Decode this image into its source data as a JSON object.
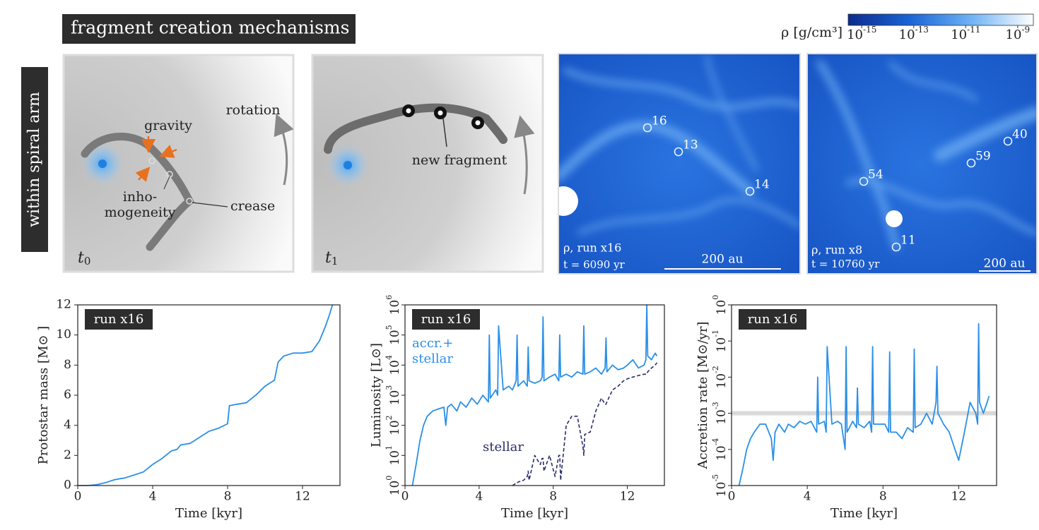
{
  "header": {
    "title": "fragment creation mechanisms",
    "side_label": "within spiral arm"
  },
  "diagram_t0": {
    "gravity": "gravity",
    "rotation": "rotation",
    "inhomogeneity": [
      "inho-",
      "mogeneity"
    ],
    "crease": "crease",
    "time": {
      "var": "t",
      "sub": "0"
    }
  },
  "diagram_t1": {
    "new_fragment": "new fragment",
    "time": {
      "var": "t",
      "sub": "1"
    }
  },
  "colorbar": {
    "label": "ρ [g/cm³]",
    "log": true,
    "lim": [
      3e-16,
      4e-09
    ],
    "colors": [
      "#0b2c8c",
      "#1a64d6",
      "#6fb3f5",
      "#ffffff"
    ],
    "ticks": [
      {
        "value": 1e-15,
        "label": {
          "base": "10",
          "exp": "-15"
        }
      },
      {
        "value": 1e-13,
        "label": {
          "base": "10",
          "exp": "-13"
        }
      },
      {
        "value": 1e-11,
        "label": {
          "base": "10",
          "exp": "-11"
        }
      },
      {
        "value": 1e-09,
        "label": {
          "base": "10",
          "exp": "-9"
        }
      }
    ]
  },
  "simulations": [
    {
      "run": "ρ, run x16",
      "time": "t = 6090 yr",
      "scale": "200 au",
      "fragments": [
        "16",
        "13",
        "14"
      ]
    },
    {
      "run": "ρ, run x8",
      "time": "t = 10760 yr",
      "scale": "200 au",
      "fragments": [
        "54",
        "59",
        "40",
        "11"
      ]
    }
  ],
  "chart_data": [
    {
      "type": "line",
      "annotation": "run x16",
      "xlabel": "Time [kyr]",
      "ylabel": "Protostar mass [M⊙ ]",
      "color": "#2a8fe8",
      "xlim": [
        0,
        14
      ],
      "xticks": [
        0,
        4,
        8,
        12
      ],
      "ylim": [
        0,
        12
      ],
      "yticks": [
        0,
        2,
        4,
        6,
        8,
        10,
        12
      ],
      "x": [
        0,
        0.5,
        1,
        1.5,
        2,
        2.5,
        3,
        3.5,
        3.8,
        4,
        4.5,
        5,
        5.3,
        5.5,
        6,
        6.5,
        7,
        7.5,
        8,
        8.1,
        8.5,
        9,
        9.5,
        10,
        10.5,
        10.7,
        11,
        11.5,
        12,
        12.5,
        12.9,
        13.2,
        13.4,
        13.6
      ],
      "values": [
        0,
        0,
        0.05,
        0.2,
        0.4,
        0.5,
        0.7,
        0.9,
        1.2,
        1.4,
        1.8,
        2.3,
        2.4,
        2.7,
        2.8,
        3.2,
        3.6,
        3.8,
        4.1,
        5.3,
        5.4,
        5.5,
        6.0,
        6.6,
        7.0,
        8.2,
        8.6,
        8.8,
        8.8,
        8.9,
        9.6,
        10.5,
        11.2,
        12.0
      ]
    },
    {
      "type": "line",
      "annotation": "run x16",
      "xlabel": "Time [kyr]",
      "ylabel": "Luminosity [L⊙]",
      "ylog": true,
      "xlim": [
        0,
        14
      ],
      "xticks": [
        0,
        4,
        8,
        12
      ],
      "ylim": [
        1,
        1000000
      ],
      "yticks": [
        {
          "value": 1,
          "label": {
            "base": "10",
            "exp": "0"
          }
        },
        {
          "value": 10,
          "label": {
            "base": "10",
            "exp": "1"
          }
        },
        {
          "value": 100,
          "label": {
            "base": "10",
            "exp": "2"
          }
        },
        {
          "value": 1000,
          "label": {
            "base": "10",
            "exp": "3"
          }
        },
        {
          "value": 10000,
          "label": {
            "base": "10",
            "exp": "4"
          }
        },
        {
          "value": 100000,
          "label": {
            "base": "10",
            "exp": "5"
          }
        },
        {
          "value": 1000000,
          "label": {
            "base": "10",
            "exp": "6"
          }
        }
      ],
      "x": [
        0.4,
        0.6,
        0.8,
        1.0,
        1.2,
        1.5,
        1.8,
        2.1,
        2.2,
        2.3,
        2.5,
        2.8,
        3.0,
        3.3,
        3.6,
        3.9,
        4.2,
        4.5,
        4.55,
        4.6,
        4.9,
        5.0,
        5.05,
        5.3,
        5.6,
        5.8,
        6.0,
        6.05,
        6.1,
        6.4,
        6.6,
        6.65,
        6.7,
        7.0,
        7.3,
        7.4,
        7.45,
        7.5,
        7.8,
        8.1,
        8.3,
        8.35,
        8.4,
        8.7,
        9.0,
        9.3,
        9.6,
        9.65,
        9.7,
        10.0,
        10.3,
        10.6,
        10.8,
        10.85,
        10.9,
        11.2,
        11.5,
        11.8,
        12.0,
        12.3,
        12.6,
        12.9,
        13.0,
        13.05,
        13.1,
        13.3,
        13.5,
        13.6
      ],
      "series": [
        {
          "name": "accr.+ stellar",
          "color": "#2a8fe8",
          "dashed": false,
          "values": [
            1,
            5,
            30,
            100,
            200,
            300,
            350,
            400,
            100,
            400,
            500,
            300,
            600,
            400,
            800,
            500,
            1000,
            600,
            100000,
            800,
            1500,
            1000,
            200000,
            1500,
            2000,
            1500,
            3000,
            100000,
            2000,
            3000,
            2000,
            40000,
            3000,
            2500,
            3000,
            4000,
            400000,
            3000,
            4000,
            5000,
            3000,
            100000,
            4000,
            5000,
            4000,
            6000,
            5000,
            200000,
            5000,
            6000,
            8000,
            5000,
            8000,
            80000,
            6000,
            10000,
            7000,
            8000,
            10000,
            15000,
            8000,
            10000,
            15000,
            1000000,
            20000,
            15000,
            25000,
            20000
          ]
        },
        {
          "name": "stellar",
          "color": "#2b2b6b",
          "dashed": true,
          "values": [
            null,
            null,
            null,
            null,
            null,
            null,
            null,
            null,
            null,
            null,
            null,
            null,
            null,
            null,
            null,
            null,
            null,
            null,
            null,
            null,
            null,
            null,
            null,
            null,
            null,
            1,
            1.2,
            1.2,
            1.3,
            1.5,
            2,
            3,
            1.5,
            10,
            5,
            8,
            8,
            3,
            10,
            2,
            10,
            10,
            1.5,
            100,
            200,
            200,
            20,
            10,
            50,
            60,
            300,
            800,
            500,
            500,
            600,
            1500,
            2000,
            3000,
            3500,
            4000,
            4500,
            5000,
            5000,
            5000,
            6000,
            8000,
            10000,
            12000
          ]
        }
      ]
    },
    {
      "type": "line",
      "annotation": "run x16",
      "xlabel": "Time [kyr]",
      "ylabel": "Accretion rate [M⊙/yr]",
      "ylog": true,
      "color": "#2a8fe8",
      "reference_line": 0.001,
      "reference_color": "#d9d9d9",
      "xlim": [
        0,
        14
      ],
      "xticks": [
        0,
        4,
        8,
        12
      ],
      "ylim": [
        1e-05,
        1
      ],
      "yticks": [
        {
          "value": 1e-05,
          "label": {
            "base": "10",
            "exp": "-5"
          }
        },
        {
          "value": 0.0001,
          "label": {
            "base": "10",
            "exp": "-4"
          }
        },
        {
          "value": 0.001,
          "label": {
            "base": "10",
            "exp": "-3"
          }
        },
        {
          "value": 0.01,
          "label": {
            "base": "10",
            "exp": "-2"
          }
        },
        {
          "value": 0.1,
          "label": {
            "base": "10",
            "exp": "-1"
          }
        },
        {
          "value": 1,
          "label": {
            "base": "10",
            "exp": "0"
          }
        }
      ],
      "x": [
        0.4,
        0.6,
        0.8,
        1.0,
        1.2,
        1.5,
        1.8,
        2.1,
        2.2,
        2.3,
        2.5,
        2.8,
        3.0,
        3.3,
        3.6,
        3.9,
        4.2,
        4.5,
        4.55,
        4.6,
        4.9,
        5.0,
        5.05,
        5.3,
        5.6,
        5.8,
        6.0,
        6.05,
        6.1,
        6.4,
        6.6,
        6.65,
        6.7,
        7.0,
        7.3,
        7.4,
        7.45,
        7.5,
        7.8,
        8.1,
        8.3,
        8.35,
        8.4,
        8.7,
        9.0,
        9.3,
        9.6,
        9.65,
        9.7,
        10.0,
        10.3,
        10.6,
        10.8,
        10.85,
        10.9,
        11.2,
        11.5,
        11.8,
        12.0,
        12.3,
        12.6,
        12.9,
        13.0,
        13.05,
        13.1,
        13.3,
        13.5,
        13.6
      ],
      "values": [
        1e-05,
        3e-05,
        0.0001,
        0.0002,
        0.0003,
        0.0005,
        0.0005,
        0.0002,
        5e-05,
        0.0003,
        0.0005,
        0.0003,
        0.0005,
        0.0004,
        0.0006,
        0.0005,
        0.0006,
        0.0003,
        0.01,
        0.0005,
        0.0006,
        0.0003,
        0.07,
        0.0005,
        0.0006,
        0.0005,
        0.0001,
        0.07,
        0.0003,
        0.0006,
        0.0004,
        0.005,
        0.0005,
        0.0004,
        0.0006,
        0.0003,
        0.07,
        0.0005,
        0.0005,
        0.0005,
        0.0003,
        0.05,
        0.0003,
        0.0003,
        0.0002,
        0.0004,
        0.0003,
        0.06,
        0.0004,
        0.0005,
        0.001,
        0.0005,
        0.002,
        0.02,
        0.001,
        0.0005,
        0.0003,
        0.0001,
        5e-05,
        0.0003,
        0.002,
        0.001,
        0.0005,
        0.3,
        0.002,
        0.001,
        0.002,
        0.003
      ]
    }
  ]
}
